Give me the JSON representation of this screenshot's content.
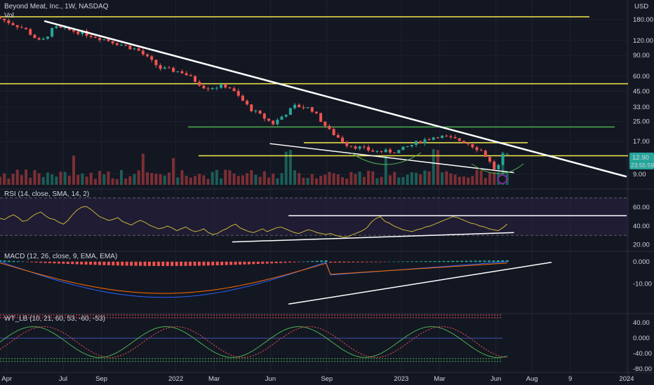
{
  "header": {
    "symbol_title": "Beyond Meat, Inc., 1W, NASDAQ",
    "vol_label": "Vol",
    "currency": "USD"
  },
  "price_badge": {
    "price": "12.90",
    "countdown": "23:55:59"
  },
  "panes": {
    "rsi_label": "RSI (14, close, SMA, 14, 2)",
    "macd_label": "MACD (12, 26, close, 9, EMA, EMA)",
    "wt_label": "WT_LB (10, 21, 60, 53, -60, -53)"
  },
  "colors": {
    "background": "#131722",
    "up": "#26a69a",
    "down": "#ef5350",
    "yellow_line": "#f5e94a",
    "green_line": "#4caf50",
    "trendline": "#ffffff",
    "rsi_line": "#c9b53a",
    "macd_line": "#2962ff",
    "signal_line": "#ff6d00",
    "price_badge": "#26a69a"
  },
  "chart_data": {
    "type": "candlestick",
    "title": "Beyond Meat, Inc., 1W, NASDAQ",
    "y_scale": "log",
    "price_axis_ticks": [
      "180.00",
      "120.00",
      "90.00",
      "60.00",
      "45.00",
      "33.00",
      "25.00",
      "17.00",
      "9.00"
    ],
    "x_tick_labels": [
      "Apr",
      "Jul",
      "Sep",
      "2022",
      "Mar",
      "Jun",
      "Sep",
      "2023",
      "Mar",
      "Jun",
      "Aug",
      "9",
      "2024"
    ],
    "last_price": 12.9,
    "horizontal_levels": [
      {
        "price": 190,
        "color": "yellow"
      },
      {
        "price": 52,
        "color": "yellow"
      },
      {
        "price": 22.5,
        "color": "green"
      },
      {
        "price": 16.6,
        "color": "yellow"
      },
      {
        "price": 12.9,
        "color": "yellow"
      }
    ],
    "trendlines": [
      {
        "from": {
          "time": "2021-06",
          "price": 175
        },
        "to": {
          "time": "2024-01",
          "price": 8.6
        }
      },
      {
        "from": {
          "time": "2022-06",
          "price": 16.3
        },
        "to": {
          "time": "2023-07",
          "price": 9.3
        }
      }
    ],
    "rsi": {
      "name": "RSI (14, close, SMA, 14, 2)",
      "axis_ticks": [
        "60.00",
        "40.00",
        "20.00"
      ],
      "ylim": [
        16,
        78
      ],
      "bands": [
        70,
        30
      ],
      "values": [
        48,
        47,
        50,
        52,
        49,
        45,
        46,
        50,
        53,
        55,
        51,
        48,
        47,
        44,
        42,
        46,
        52,
        57,
        60,
        61,
        58,
        54,
        50,
        48,
        46,
        47,
        49,
        45,
        43,
        41,
        44,
        46,
        44,
        41,
        39,
        37,
        38,
        40,
        38,
        35,
        37,
        39,
        36,
        34,
        35,
        37,
        33,
        31,
        32,
        35,
        37,
        40,
        42,
        38,
        36,
        34,
        33,
        35,
        37,
        34,
        36,
        38,
        39,
        37,
        35,
        33,
        32,
        34,
        36,
        35,
        33,
        32,
        31,
        32,
        30,
        29,
        28,
        29,
        31,
        33,
        35,
        38,
        44,
        48,
        50,
        45,
        43,
        40,
        38,
        36,
        35,
        34,
        36,
        37,
        39,
        40,
        42,
        44,
        46,
        48,
        50,
        49,
        47,
        45,
        43,
        42,
        40,
        39,
        37,
        36,
        35,
        38,
        42
      ],
      "support_line": [
        {
          "time": "2022-04",
          "value": 23
        },
        {
          "time": "2023-07",
          "value": 33
        }
      ],
      "resistance_line": [
        {
          "time": "2022-07",
          "value": 51
        },
        {
          "time": "2024-01",
          "value": 51
        }
      ]
    },
    "macd": {
      "name": "MACD (12, 26, close, 9, EMA, EMA)",
      "axis_ticks": [
        "0.000",
        "-10.00"
      ],
      "ylim": [
        -22,
        4
      ],
      "trendline": [
        {
          "time": "2022-07",
          "value": -19
        },
        {
          "time": "2023-09",
          "value": -0.3
        }
      ]
    },
    "wt_lb": {
      "name": "WT_LB (10, 21, 60, 53, -60, -53)",
      "axis_ticks": [
        "40.00",
        "0.000",
        "-40.00",
        "-80.00"
      ],
      "ylim": [
        -85,
        60
      ],
      "levels": [
        60,
        53,
        -60,
        -53
      ]
    }
  }
}
